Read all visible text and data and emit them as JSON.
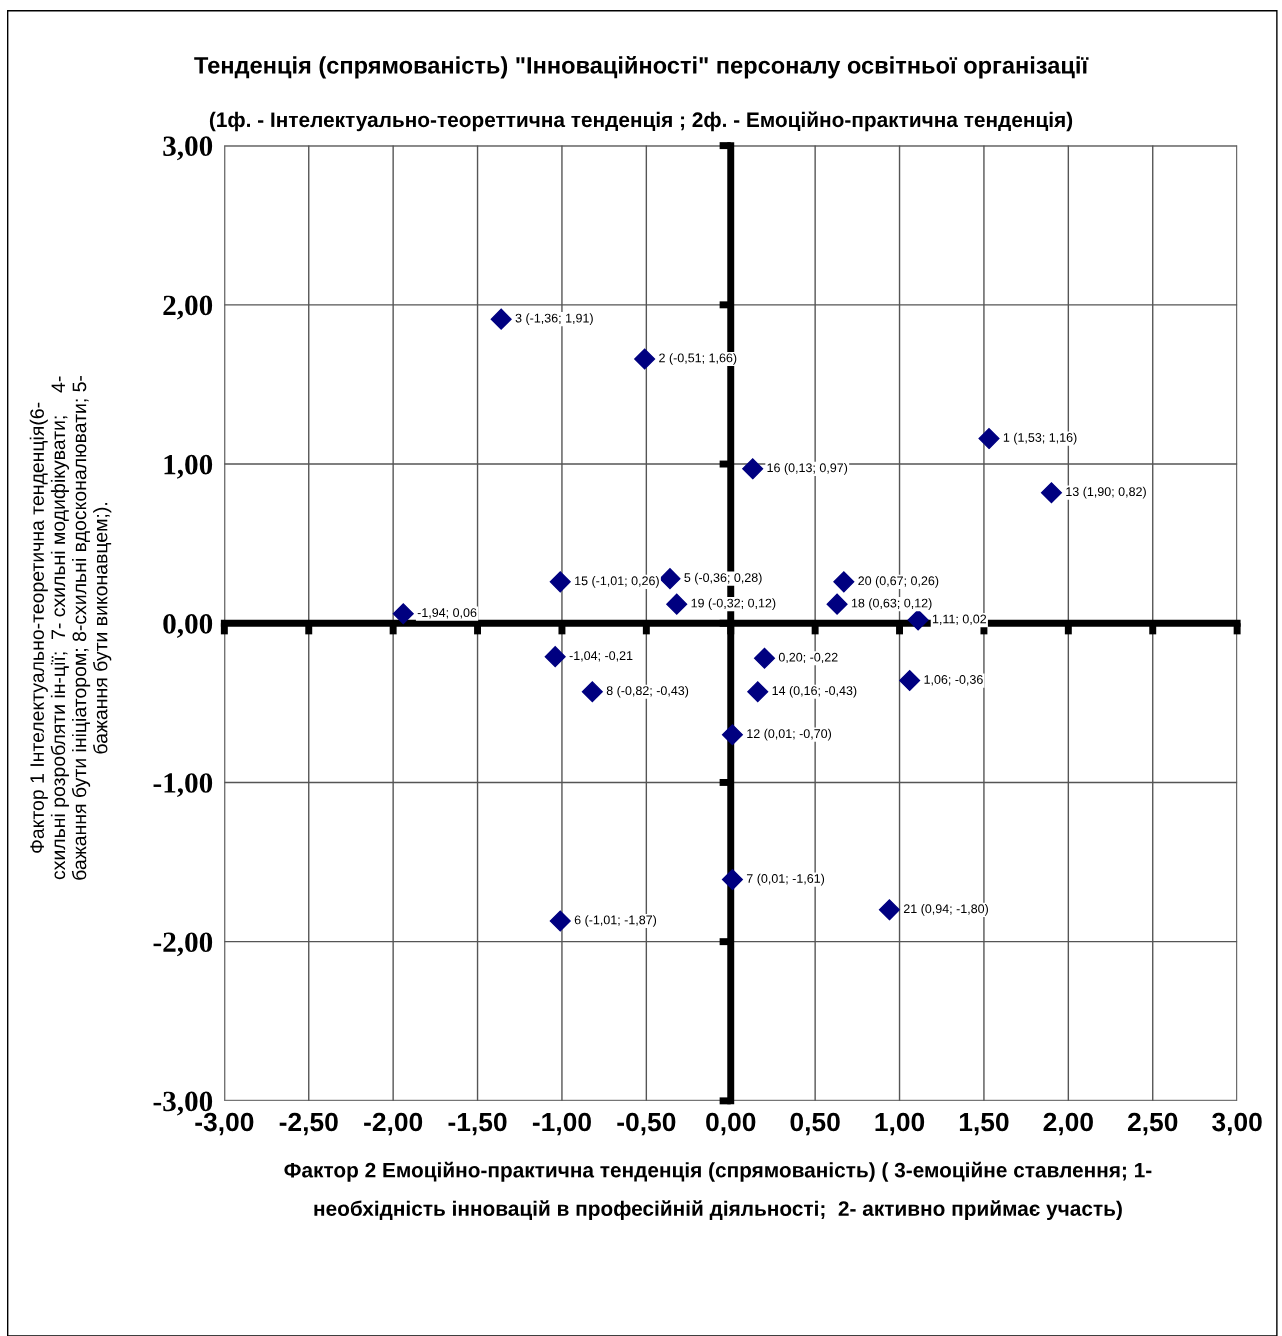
{
  "chart_data": {
    "type": "scatter",
    "title": "Тенденція (спрямованість) \"Інноваційності\" персоналу освітньої організації",
    "subtitle": "(1ф. - Інтелектуально-теореттична тенденція ; 2ф. - Емоційно-практична тенденція)",
    "xlabel": "Фактор 2 Емоційно-практична тенденція (спрямованість) ( 3-емоційне ставлення; 1-\nнеобхідність інновацій в професійній діяльності;  2- активно приймає участь)",
    "ylabel": "Фактор 1 Інтелектуально-теоретична тенденція(6-\nсхильні розробляти ін-ції;  7- схильні модифікувати;    4-\nбажання бути ініціатором; 8-схильні вдосконалювати; 5-\nбажання бути виконавцем;).",
    "x": [
      1.53,
      -0.51,
      -1.36,
      -0.36,
      -1.01,
      0.01,
      -0.82,
      0.01,
      1.9,
      0.16,
      -1.01,
      0.13,
      0.63,
      -0.32,
      0.67,
      0.94,
      -1.94,
      -1.04,
      0.2,
      1.11,
      1.06
    ],
    "values": [
      1.16,
      1.66,
      1.91,
      0.28,
      -1.87,
      -1.61,
      -0.43,
      -0.7,
      0.82,
      -0.43,
      0.26,
      0.97,
      0.12,
      0.12,
      0.26,
      -1.8,
      0.06,
      -0.21,
      -0.22,
      0.02,
      -0.36
    ],
    "color": "#000080",
    "marker": "diamond",
    "grid": true,
    "xlim": [
      -3,
      3
    ],
    "xticks": [
      {
        "value": -3,
        "label": "-3,00"
      },
      {
        "value": -2.5,
        "label": "-2,50"
      },
      {
        "value": -2,
        "label": "-2,00"
      },
      {
        "value": -1.5,
        "label": "-1,50"
      },
      {
        "value": -1,
        "label": "-1,00"
      },
      {
        "value": -0.5,
        "label": "-0,50"
      },
      {
        "value": 0,
        "label": "0,00"
      },
      {
        "value": 0.5,
        "label": "0,50"
      },
      {
        "value": 1,
        "label": "1,00"
      },
      {
        "value": 1.5,
        "label": "1,50"
      },
      {
        "value": 2,
        "label": "2,00"
      },
      {
        "value": 2.5,
        "label": "2,50"
      },
      {
        "value": 3,
        "label": "3,00"
      }
    ],
    "ylim": [
      -3,
      3
    ],
    "yticks": [
      {
        "value": -3,
        "label": "-3,00"
      },
      {
        "value": -2,
        "label": "-2,00"
      },
      {
        "value": -1,
        "label": "-1,00"
      },
      {
        "value": 0,
        "label": "0,00"
      },
      {
        "value": 1,
        "label": "1,00"
      },
      {
        "value": 2,
        "label": "2,00"
      },
      {
        "value": 3,
        "label": "3,00"
      }
    ],
    "annotations": [
      {
        "text": "1 (1,53; 1,16)",
        "x": 1.53,
        "y": 1.16
      },
      {
        "text": "2 (-0,51; 1,66)",
        "x": -0.51,
        "y": 1.66
      },
      {
        "text": "3 (-1,36; 1,91)",
        "x": -1.36,
        "y": 1.91
      },
      {
        "text": "5 (-0,36; 0,28)",
        "x": -0.36,
        "y": 0.28
      },
      {
        "text": "6 (-1,01; -1,87)",
        "x": -1.01,
        "y": -1.87
      },
      {
        "text": "7 (0,01; -1,61)",
        "x": 0.01,
        "y": -1.61
      },
      {
        "text": "8 (-0,82; -0,43)",
        "x": -0.82,
        "y": -0.43
      },
      {
        "text": "12 (0,01; -0,70)",
        "x": 0.01,
        "y": -0.7
      },
      {
        "text": "13 (1,90; 0,82)",
        "x": 1.9,
        "y": 0.82
      },
      {
        "text": "14 (0,16; -0,43)",
        "x": 0.16,
        "y": -0.43
      },
      {
        "text": "15 (-1,01; 0,26)",
        "x": -1.01,
        "y": 0.26
      },
      {
        "text": "16 (0,13; 0,97)",
        "x": 0.13,
        "y": 0.97
      },
      {
        "text": "18 (0,63; 0,12)",
        "x": 0.63,
        "y": 0.12
      },
      {
        "text": "19 (-0,32; 0,12)",
        "x": -0.32,
        "y": 0.12
      },
      {
        "text": "20 (0,67; 0,26)",
        "x": 0.67,
        "y": 0.26
      },
      {
        "text": "21 (0,94; -1,80)",
        "x": 0.94,
        "y": -1.8
      },
      {
        "text": "-1,94; 0,06",
        "x": -1.94,
        "y": 0.06
      },
      {
        "text": "-1,04; -0,21",
        "x": -1.04,
        "y": -0.21
      },
      {
        "text": "0,20; -0,22",
        "x": 0.2,
        "y": -0.22
      },
      {
        "text": "1,11; 0,02",
        "x": 1.11,
        "y": 0.02
      },
      {
        "text": "1,06; -0,36",
        "x": 1.06,
        "y": -0.36
      }
    ]
  }
}
